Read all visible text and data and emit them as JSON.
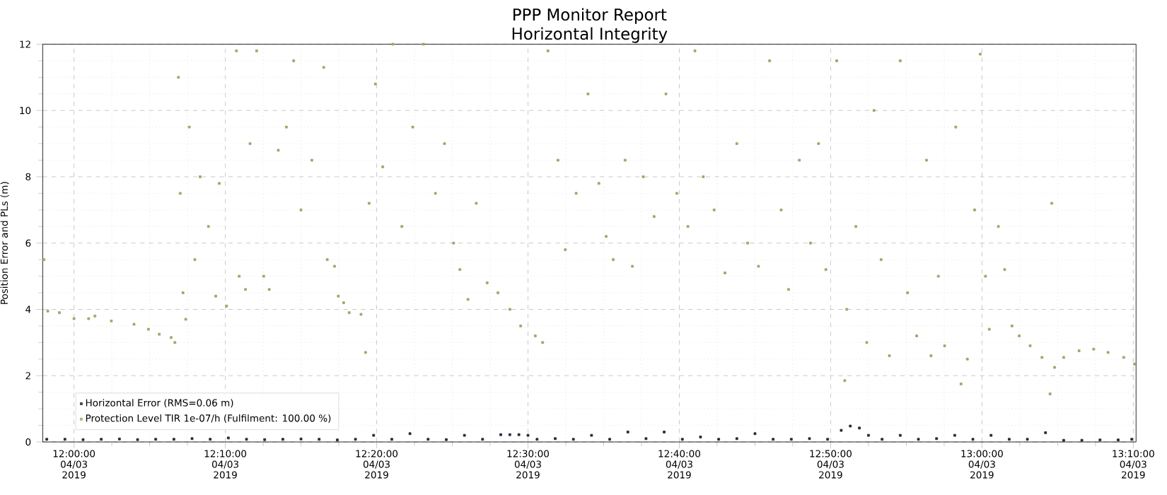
{
  "chart_data": {
    "type": "scatter",
    "title": "PPP Monitor Report",
    "subtitle": "Horizontal Integrity",
    "ylabel": "Position Error and PLs (m)",
    "xlim": [
      "2019-03-04T11:57:56",
      "2019-03-04T13:10:11"
    ],
    "ylim": [
      0,
      12
    ],
    "xticks": [
      {
        "value": "2019-03-04T12:00:00",
        "label": "12:00:00 04/03 2019"
      },
      {
        "value": "2019-03-04T12:10:00",
        "label": "12:10:00 04/03 2019"
      },
      {
        "value": "2019-03-04T12:20:00",
        "label": "12:20:00 04/03 2019"
      },
      {
        "value": "2019-03-04T12:30:00",
        "label": "12:30:00 04/03 2019"
      },
      {
        "value": "2019-03-04T12:40:00",
        "label": "12:40:00 04/03 2019"
      },
      {
        "value": "2019-03-04T12:50:00",
        "label": "12:50:00 04/03 2019"
      },
      {
        "value": "2019-03-04T13:00:00",
        "label": "13:00:00 04/03 2019"
      },
      {
        "value": "2019-03-04T13:10:00",
        "label": "13:10:00 04/03 2019"
      }
    ],
    "yticks": [
      0,
      2,
      4,
      6,
      8,
      10,
      12
    ],
    "grid": true,
    "legend": "bottom left",
    "marker": "square",
    "series": [
      {
        "name": "Horizontal Error (RMS=0.06 m)",
        "color": "#1f2a36",
        "x": [
          "2019-03-04T11:58:12",
          "2019-03-04T11:59:24",
          "2019-03-04T12:00:36",
          "2019-03-04T12:01:48",
          "2019-03-04T12:03:00",
          "2019-03-04T12:04:12",
          "2019-03-04T12:05:24",
          "2019-03-04T12:06:36",
          "2019-03-04T12:07:48",
          "2019-03-04T12:09:00",
          "2019-03-04T12:10:12",
          "2019-03-04T12:11:24",
          "2019-03-04T12:12:36",
          "2019-03-04T12:13:48",
          "2019-03-04T12:15:00",
          "2019-03-04T12:16:12",
          "2019-03-04T12:17:24",
          "2019-03-04T12:18:36",
          "2019-03-04T12:19:48",
          "2019-03-04T12:21:00",
          "2019-03-04T12:22:12",
          "2019-03-04T12:23:24",
          "2019-03-04T12:24:36",
          "2019-03-04T12:25:48",
          "2019-03-04T12:27:00",
          "2019-03-04T12:28:12",
          "2019-03-04T12:28:48",
          "2019-03-04T12:29:24",
          "2019-03-04T12:30:00",
          "2019-03-04T12:30:36",
          "2019-03-04T12:31:48",
          "2019-03-04T12:33:00",
          "2019-03-04T12:34:12",
          "2019-03-04T12:35:24",
          "2019-03-04T12:36:36",
          "2019-03-04T12:37:48",
          "2019-03-04T12:39:00",
          "2019-03-04T12:40:12",
          "2019-03-04T12:41:24",
          "2019-03-04T12:42:36",
          "2019-03-04T12:43:48",
          "2019-03-04T12:45:00",
          "2019-03-04T12:46:12",
          "2019-03-04T12:47:24",
          "2019-03-04T12:48:36",
          "2019-03-04T12:49:48",
          "2019-03-04T12:50:42",
          "2019-03-04T12:51:18",
          "2019-03-04T12:51:54",
          "2019-03-04T12:52:30",
          "2019-03-04T12:53:24",
          "2019-03-04T12:54:36",
          "2019-03-04T12:55:48",
          "2019-03-04T12:57:00",
          "2019-03-04T12:58:12",
          "2019-03-04T12:59:24",
          "2019-03-04T13:00:36",
          "2019-03-04T13:01:48",
          "2019-03-04T13:03:00",
          "2019-03-04T13:04:12",
          "2019-03-04T13:05:24",
          "2019-03-04T13:06:36",
          "2019-03-04T13:07:48",
          "2019-03-04T13:09:00",
          "2019-03-04T13:09:54"
        ],
        "values": [
          0.08,
          0.08,
          0.07,
          0.08,
          0.09,
          0.07,
          0.08,
          0.08,
          0.1,
          0.08,
          0.12,
          0.08,
          0.07,
          0.08,
          0.09,
          0.08,
          0.06,
          0.08,
          0.2,
          0.08,
          0.25,
          0.08,
          0.07,
          0.2,
          0.08,
          0.22,
          0.22,
          0.22,
          0.2,
          0.08,
          0.1,
          0.08,
          0.2,
          0.08,
          0.3,
          0.1,
          0.3,
          0.08,
          0.15,
          0.08,
          0.1,
          0.25,
          0.08,
          0.08,
          0.1,
          0.08,
          0.35,
          0.48,
          0.42,
          0.2,
          0.08,
          0.2,
          0.08,
          0.1,
          0.2,
          0.08,
          0.2,
          0.08,
          0.08,
          0.28,
          0.05,
          0.05,
          0.06,
          0.06,
          0.08
        ]
      },
      {
        "name": "Protection Level TIR 1e-07/h (Fulfilment: 100.00 %)",
        "color": "#9aa86a",
        "x": [
          "2019-03-04T11:58:01",
          "2019-03-04T11:58:16",
          "2019-03-04T11:59:02",
          "2019-03-04T12:00:00",
          "2019-03-04T12:00:58",
          "2019-03-04T12:01:23",
          "2019-03-04T12:02:28",
          "2019-03-04T12:03:58",
          "2019-03-04T12:04:55",
          "2019-03-04T12:05:38",
          "2019-03-04T12:06:25",
          "2019-03-04T12:06:40",
          "2019-03-04T12:06:54",
          "2019-03-04T12:07:01",
          "2019-03-04T12:07:12",
          "2019-03-04T12:07:23",
          "2019-03-04T12:07:37",
          "2019-03-04T12:07:59",
          "2019-03-04T12:08:20",
          "2019-03-04T12:08:53",
          "2019-03-04T12:09:22",
          "2019-03-04T12:09:36",
          "2019-03-04T12:10:05",
          "2019-03-04T12:10:44",
          "2019-03-04T12:10:55",
          "2019-03-04T12:11:20",
          "2019-03-04T12:11:38",
          "2019-03-04T12:12:04",
          "2019-03-04T12:12:32",
          "2019-03-04T12:12:54",
          "2019-03-04T12:13:30",
          "2019-03-04T12:14:02",
          "2019-03-04T12:14:31",
          "2019-03-04T12:15:00",
          "2019-03-04T12:15:43",
          "2019-03-04T12:16:30",
          "2019-03-04T12:16:44",
          "2019-03-04T12:17:13",
          "2019-03-04T12:17:28",
          "2019-03-04T12:17:49",
          "2019-03-04T12:18:11",
          "2019-03-04T12:18:58",
          "2019-03-04T12:19:16",
          "2019-03-04T12:19:30",
          "2019-03-04T12:19:55",
          "2019-03-04T12:20:24",
          "2019-03-04T12:21:04",
          "2019-03-04T12:21:40",
          "2019-03-04T12:22:23",
          "2019-03-04T12:23:06",
          "2019-03-04T12:23:53",
          "2019-03-04T12:24:29",
          "2019-03-04T12:25:05",
          "2019-03-04T12:25:30",
          "2019-03-04T12:26:02",
          "2019-03-04T12:26:35",
          "2019-03-04T12:27:18",
          "2019-03-04T12:28:01",
          "2019-03-04T12:28:48",
          "2019-03-04T12:29:31",
          "2019-03-04T12:30:29",
          "2019-03-04T12:30:58",
          "2019-03-04T12:31:19",
          "2019-03-04T12:31:59",
          "2019-03-04T12:32:28",
          "2019-03-04T12:33:11",
          "2019-03-04T12:33:58",
          "2019-03-04T12:34:41",
          "2019-03-04T12:35:10",
          "2019-03-04T12:35:38",
          "2019-03-04T12:36:25",
          "2019-03-04T12:36:54",
          "2019-03-04T12:37:37",
          "2019-03-04T12:38:20",
          "2019-03-04T12:39:07",
          "2019-03-04T12:39:50",
          "2019-03-04T12:40:34",
          "2019-03-04T12:41:02",
          "2019-03-04T12:41:35",
          "2019-03-04T12:42:18",
          "2019-03-04T12:43:01",
          "2019-03-04T12:43:48",
          "2019-03-04T12:44:31",
          "2019-03-04T12:45:14",
          "2019-03-04T12:45:58",
          "2019-03-04T12:46:44",
          "2019-03-04T12:47:13",
          "2019-03-04T12:47:56",
          "2019-03-04T12:48:40",
          "2019-03-04T12:49:12",
          "2019-03-04T12:49:41",
          "2019-03-04T12:50:24",
          "2019-03-04T12:50:56",
          "2019-03-04T12:51:04",
          "2019-03-04T12:51:40",
          "2019-03-04T12:52:23",
          "2019-03-04T12:52:52",
          "2019-03-04T12:53:20",
          "2019-03-04T12:53:53",
          "2019-03-04T12:54:36",
          "2019-03-04T12:55:05",
          "2019-03-04T12:55:41",
          "2019-03-04T12:56:20",
          "2019-03-04T12:56:38",
          "2019-03-04T12:57:07",
          "2019-03-04T12:57:32",
          "2019-03-04T12:58:16",
          "2019-03-04T12:58:37",
          "2019-03-04T12:59:02",
          "2019-03-04T12:59:31",
          "2019-03-04T12:59:53",
          "2019-03-04T13:00:14",
          "2019-03-04T13:00:29",
          "2019-03-04T13:01:05",
          "2019-03-04T13:01:30",
          "2019-03-04T13:01:59",
          "2019-03-04T13:02:28",
          "2019-03-04T13:03:11",
          "2019-03-04T13:03:58",
          "2019-03-04T13:04:30",
          "2019-03-04T13:04:37",
          "2019-03-04T13:04:48",
          "2019-03-04T13:05:24",
          "2019-03-04T13:06:25",
          "2019-03-04T13:07:23",
          "2019-03-04T13:08:20",
          "2019-03-04T13:09:22",
          "2019-03-04T13:10:05"
        ],
        "values": [
          5.5,
          3.95,
          3.9,
          3.72,
          3.72,
          3.8,
          3.65,
          3.55,
          3.4,
          3.25,
          3.15,
          3.0,
          11.0,
          7.5,
          4.5,
          3.7,
          9.5,
          5.5,
          8.0,
          6.5,
          4.4,
          7.8,
          4.1,
          11.8,
          5.0,
          4.6,
          9.0,
          11.8,
          5.0,
          4.6,
          8.8,
          9.5,
          11.5,
          7.0,
          8.5,
          11.3,
          5.5,
          5.3,
          4.4,
          4.2,
          3.9,
          3.85,
          2.7,
          7.2,
          10.8,
          8.3,
          12.0,
          6.5,
          9.5,
          12.0,
          7.5,
          9.0,
          6.0,
          5.2,
          4.3,
          7.2,
          4.8,
          4.5,
          4.0,
          3.5,
          3.2,
          3.0,
          11.8,
          8.5,
          5.8,
          7.5,
          10.5,
          7.8,
          6.2,
          5.5,
          8.5,
          5.3,
          8.0,
          6.8,
          10.5,
          7.5,
          6.5,
          11.8,
          8.0,
          7.0,
          5.1,
          9.0,
          6.0,
          5.3,
          11.5,
          7.0,
          4.6,
          8.5,
          6.0,
          9.0,
          5.2,
          11.5,
          1.85,
          4.0,
          6.5,
          3.0,
          10.0,
          5.5,
          2.6,
          11.5,
          4.5,
          3.2,
          8.5,
          2.6,
          5.0,
          2.9,
          9.5,
          1.75,
          2.5,
          7.0,
          11.7,
          5.0,
          3.4,
          6.5,
          5.2,
          3.5,
          3.2,
          2.9,
          2.55,
          1.45,
          7.2,
          2.25,
          2.55,
          2.75,
          2.8,
          2.7,
          2.55,
          2.35
        ]
      }
    ]
  }
}
